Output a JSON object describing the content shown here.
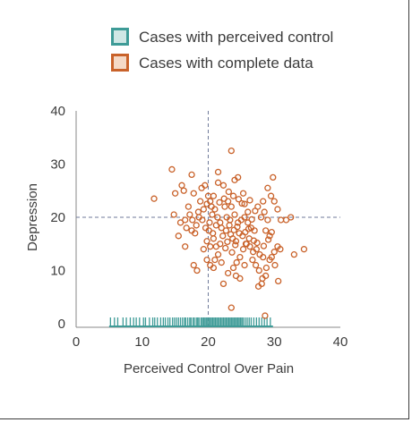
{
  "chart_data": {
    "type": "scatter",
    "title": "",
    "xlabel": "Perceived Control Over Pain",
    "ylabel": "Depression",
    "xlim": [
      0,
      40
    ],
    "ylim": [
      0,
      40
    ],
    "x_ticks": [
      "0",
      "10",
      "20",
      "30",
      "40"
    ],
    "y_ticks": [
      "0",
      "10",
      "20",
      "30",
      "40"
    ],
    "reference_lines": {
      "x": 20,
      "y": 20,
      "style": "dashed"
    },
    "legend": {
      "placement": "top-center",
      "entries": [
        {
          "label": "Cases with perceived control",
          "marker": "square",
          "fill": "#cfe7e5",
          "stroke": "#3e9b97"
        },
        {
          "label": "Cases with complete data",
          "marker": "square",
          "fill": "#f5d9c6",
          "stroke": "#c9622a"
        }
      ]
    },
    "series": [
      {
        "name": "Cases with complete data",
        "marker": "open-circle",
        "color": "#c9622a",
        "points": [
          [
            11.8,
            23.5
          ],
          [
            14.5,
            29
          ],
          [
            15,
            24.5
          ],
          [
            16,
            26
          ],
          [
            16.3,
            25
          ],
          [
            17.5,
            28
          ],
          [
            17.8,
            24.5
          ],
          [
            14.8,
            20.5
          ],
          [
            15.8,
            19
          ],
          [
            16.5,
            19.5
          ],
          [
            17,
            22
          ],
          [
            17.5,
            17.5
          ],
          [
            18,
            17
          ],
          [
            16.5,
            14.5
          ],
          [
            15.5,
            16.5
          ],
          [
            17.8,
            11
          ],
          [
            18.3,
            10
          ],
          [
            18.5,
            21
          ],
          [
            18.8,
            23
          ],
          [
            19,
            25.5
          ],
          [
            19.5,
            26
          ],
          [
            20,
            24
          ],
          [
            20.3,
            23
          ],
          [
            20.8,
            24
          ],
          [
            21.5,
            26.5
          ],
          [
            21.5,
            28.5
          ],
          [
            22.3,
            26
          ],
          [
            23.5,
            32.5
          ],
          [
            24,
            27
          ],
          [
            24.5,
            27.5
          ],
          [
            25.3,
            24.5
          ],
          [
            23.8,
            24
          ],
          [
            23,
            23
          ],
          [
            22.5,
            22
          ],
          [
            22.8,
            20
          ],
          [
            23.3,
            19.5
          ],
          [
            23.5,
            22
          ],
          [
            24,
            20.5
          ],
          [
            24.5,
            19
          ],
          [
            25,
            19.5
          ],
          [
            25.5,
            20
          ],
          [
            26,
            19
          ],
          [
            26.5,
            18
          ],
          [
            27,
            17.5
          ],
          [
            27.5,
            22
          ],
          [
            26,
            21
          ],
          [
            25.5,
            22.5
          ],
          [
            28,
            20
          ],
          [
            28.5,
            21
          ],
          [
            28.3,
            23
          ],
          [
            29,
            25.5
          ],
          [
            29.5,
            24
          ],
          [
            30,
            23
          ],
          [
            29.8,
            27.5
          ],
          [
            30.5,
            21.5
          ],
          [
            31,
            19.5
          ],
          [
            31.8,
            19.5
          ],
          [
            32.5,
            20
          ],
          [
            29,
            19.5
          ],
          [
            28.7,
            17.5
          ],
          [
            29.3,
            16.5
          ],
          [
            30.5,
            14.5
          ],
          [
            30,
            13.5
          ],
          [
            29.3,
            12
          ],
          [
            28.8,
            10.5
          ],
          [
            28.3,
            12.5
          ],
          [
            27.8,
            13
          ],
          [
            27.3,
            14
          ],
          [
            26.8,
            13.5
          ],
          [
            26.3,
            14.5
          ],
          [
            25.8,
            15
          ],
          [
            25.3,
            14
          ],
          [
            24.8,
            12.5
          ],
          [
            24.3,
            11.5
          ],
          [
            23.8,
            10.5
          ],
          [
            24.2,
            9
          ],
          [
            24.8,
            8.5
          ],
          [
            25.5,
            11
          ],
          [
            22.3,
            7.5
          ],
          [
            23,
            9.5
          ],
          [
            22,
            11.5
          ],
          [
            21.5,
            13
          ],
          [
            21,
            12
          ],
          [
            20.8,
            10.5
          ],
          [
            20.3,
            11
          ],
          [
            19.8,
            12
          ],
          [
            19.3,
            14
          ],
          [
            19.8,
            15.5
          ],
          [
            20.3,
            14.5
          ],
          [
            20.8,
            16
          ],
          [
            21.2,
            14.5
          ],
          [
            21.8,
            15
          ],
          [
            22.2,
            16.5
          ],
          [
            22.7,
            17.5
          ],
          [
            23.2,
            18.5
          ],
          [
            23.7,
            16
          ],
          [
            24.2,
            15.5
          ],
          [
            24.7,
            17
          ],
          [
            25.2,
            16.5
          ],
          [
            25.7,
            15
          ],
          [
            26.2,
            16
          ],
          [
            26.7,
            12
          ],
          [
            27.2,
            11
          ],
          [
            27.7,
            10
          ],
          [
            28.2,
            8.5
          ],
          [
            28.7,
            9
          ],
          [
            27.6,
            7
          ],
          [
            28.1,
            7.5
          ],
          [
            29.6,
            12.5
          ],
          [
            30.1,
            11
          ],
          [
            30.6,
            8
          ],
          [
            30.9,
            14
          ],
          [
            33,
            13
          ],
          [
            34.5,
            14
          ],
          [
            20.2,
            19
          ],
          [
            20.6,
            20.5
          ],
          [
            21,
            21.5
          ],
          [
            21.4,
            20
          ],
          [
            21.8,
            19
          ],
          [
            22,
            18
          ],
          [
            21.2,
            18.5
          ],
          [
            20.7,
            17
          ],
          [
            20.1,
            17.5
          ],
          [
            19.6,
            18
          ],
          [
            19.1,
            19.5
          ],
          [
            18.6,
            20
          ],
          [
            18.2,
            18.5
          ],
          [
            17.6,
            19.5
          ],
          [
            17.2,
            20.5
          ],
          [
            16.7,
            18
          ],
          [
            19.3,
            21.5
          ],
          [
            19.8,
            22.5
          ],
          [
            20.5,
            22
          ],
          [
            21.7,
            22.8
          ],
          [
            22.4,
            23.5
          ],
          [
            23.1,
            24.8
          ],
          [
            24.6,
            23.4
          ],
          [
            25.1,
            22.6
          ],
          [
            26.3,
            23.2
          ],
          [
            27.1,
            21.2
          ],
          [
            26.6,
            19.6
          ],
          [
            26.1,
            17.8
          ],
          [
            25.6,
            17.2
          ],
          [
            24.4,
            18.2
          ],
          [
            23.9,
            17.6
          ],
          [
            23.4,
            16.8
          ],
          [
            22.9,
            15.4
          ],
          [
            22.6,
            14.2
          ],
          [
            23.6,
            13.4
          ],
          [
            24.1,
            14.8
          ],
          [
            26.9,
            15.6
          ],
          [
            27.4,
            15.2
          ],
          [
            28.4,
            14.6
          ],
          [
            29.1,
            15.8
          ],
          [
            29.6,
            17.2
          ],
          [
            23.5,
            3
          ],
          [
            28.6,
            1.5
          ]
        ]
      }
    ],
    "rug": {
      "name": "Cases with perceived control",
      "axis": "x",
      "color": "#3e9b97",
      "values": [
        5.2,
        5.8,
        6.3,
        7.1,
        7.6,
        8.2,
        8.7,
        9.1,
        9.6,
        10.2,
        10.5,
        11.1,
        11.6,
        11.9,
        12.3,
        12.8,
        13.2,
        13.5,
        13.9,
        14.2,
        14.6,
        14.9,
        15.2,
        15.5,
        15.8,
        16.1,
        16.4,
        16.6,
        16.9,
        17.2,
        17.4,
        17.7,
        17.9,
        18.2,
        18.4,
        18.6,
        18.9,
        19.1,
        19.3,
        19.5,
        19.7,
        19.9,
        20.1,
        20.3,
        20.5,
        20.7,
        20.9,
        21.1,
        21.3,
        21.5,
        21.7,
        21.9,
        22.1,
        22.3,
        22.5,
        22.7,
        22.9,
        23.1,
        23.3,
        23.5,
        23.7,
        23.9,
        24.1,
        24.3,
        24.5,
        24.7,
        24.9,
        25.1,
        25.3,
        25.6,
        25.9,
        26.2,
        26.5,
        26.9,
        27.3,
        27.7,
        28.1,
        28.5,
        28.9,
        29.4
      ]
    }
  }
}
